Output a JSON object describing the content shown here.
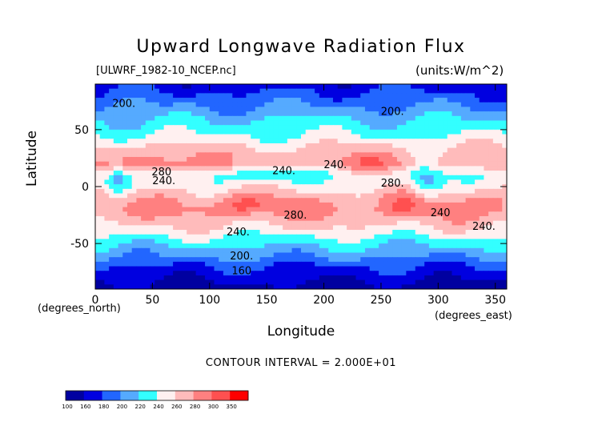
{
  "chart_data": {
    "type": "heatmap",
    "title": "Upward Longwave Radiation Flux",
    "subtitle_left": "[ULWRF_1982-10_NCEP.nc]",
    "subtitle_right": "(units:W/m^2)",
    "xlabel": "Longitude",
    "ylabel": "Latitude",
    "x_unit": "(degrees_east)",
    "y_unit": "(degrees_north)",
    "xlim": [
      0,
      360
    ],
    "ylim": [
      -90,
      90
    ],
    "x_ticks": [
      0,
      50,
      100,
      150,
      200,
      250,
      300,
      350
    ],
    "y_ticks": [
      -50,
      0,
      50
    ],
    "contour_interval_text": "CONTOUR INTERVAL = 2.000E+01",
    "contour_labels": [
      {
        "text": "200.",
        "lon": 25,
        "lat": 70
      },
      {
        "text": "200.",
        "lon": 260,
        "lat": 63
      },
      {
        "text": "280",
        "lon": 58,
        "lat": 10
      },
      {
        "text": "240.",
        "lon": 60,
        "lat": 2
      },
      {
        "text": "240.",
        "lon": 165,
        "lat": 11
      },
      {
        "text": "240.",
        "lon": 210,
        "lat": 16
      },
      {
        "text": "280.",
        "lon": 260,
        "lat": 0
      },
      {
        "text": "280.",
        "lon": 175,
        "lat": -28
      },
      {
        "text": "240",
        "lon": 302,
        "lat": -26
      },
      {
        "text": "240.",
        "lon": 125,
        "lat": -43
      },
      {
        "text": "240.",
        "lon": 340,
        "lat": -38
      },
      {
        "text": "200.",
        "lon": 128,
        "lat": -64
      },
      {
        "text": "160",
        "lon": 128,
        "lat": -77
      }
    ],
    "colorbar": {
      "bounds": [
        100,
        160,
        180,
        200,
        220,
        240,
        260,
        280,
        300,
        350
      ],
      "labels": [
        "100",
        "160",
        "180",
        "200",
        "220",
        "240",
        "260",
        "280",
        "300",
        "350"
      ],
      "colors": [
        "#0000a0",
        "#0000e0",
        "#2266ff",
        "#55aaff",
        "#33ffff",
        "#fff0f0",
        "#ffbbbb",
        "#ff8080",
        "#ff5050",
        "#ff0000"
      ]
    },
    "zonal_profile": [
      {
        "lat": 90,
        "value": 170
      },
      {
        "lat": 80,
        "value": 185
      },
      {
        "lat": 70,
        "value": 200
      },
      {
        "lat": 60,
        "value": 218
      },
      {
        "lat": 50,
        "value": 232
      },
      {
        "lat": 40,
        "value": 250
      },
      {
        "lat": 30,
        "value": 268
      },
      {
        "lat": 20,
        "value": 275
      },
      {
        "lat": 10,
        "value": 248
      },
      {
        "lat": 0,
        "value": 255
      },
      {
        "lat": -10,
        "value": 272
      },
      {
        "lat": -20,
        "value": 285
      },
      {
        "lat": -30,
        "value": 270
      },
      {
        "lat": -40,
        "value": 250
      },
      {
        "lat": -50,
        "value": 225
      },
      {
        "lat": -60,
        "value": 205
      },
      {
        "lat": -70,
        "value": 180
      },
      {
        "lat": -80,
        "value": 165
      },
      {
        "lat": -90,
        "value": 150
      }
    ]
  }
}
